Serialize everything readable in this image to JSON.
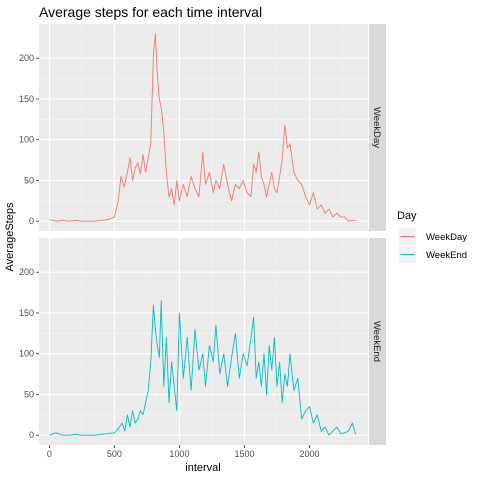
{
  "chart_data": {
    "type": "line",
    "title": "Average steps for each time interval",
    "xlabel": "interval",
    "ylabel": "AverageSteps",
    "xlim": [
      -80,
      2450
    ],
    "ylim": [
      -12,
      242
    ],
    "x_ticks": [
      0,
      500,
      1000,
      1500,
      2000
    ],
    "y_ticks": [
      0,
      50,
      100,
      150,
      200
    ],
    "grid": true,
    "legend_position": "right",
    "legend_title": "Day",
    "facet_by": "Day",
    "series": [
      {
        "name": "WeekDay",
        "color": "#F8766D",
        "x": [
          0,
          50,
          100,
          150,
          200,
          250,
          300,
          350,
          400,
          450,
          500,
          530,
          550,
          575,
          600,
          620,
          640,
          660,
          680,
          700,
          720,
          740,
          760,
          780,
          800,
          815,
          830,
          845,
          860,
          880,
          900,
          920,
          940,
          960,
          980,
          1000,
          1030,
          1060,
          1090,
          1120,
          1150,
          1180,
          1200,
          1230,
          1260,
          1280,
          1310,
          1340,
          1370,
          1400,
          1430,
          1460,
          1490,
          1520,
          1550,
          1570,
          1590,
          1610,
          1630,
          1650,
          1670,
          1690,
          1710,
          1730,
          1750,
          1770,
          1790,
          1810,
          1830,
          1850,
          1880,
          1910,
          1940,
          1970,
          2000,
          2030,
          2060,
          2090,
          2120,
          2150,
          2180,
          2210,
          2240,
          2270,
          2300,
          2330,
          2355
        ],
        "values": [
          2,
          0,
          1,
          0,
          1,
          0,
          0,
          0,
          1,
          2,
          5,
          25,
          55,
          42,
          60,
          78,
          50,
          65,
          72,
          58,
          82,
          60,
          78,
          95,
          205,
          230,
          180,
          150,
          140,
          110,
          60,
          30,
          40,
          20,
          50,
          25,
          45,
          30,
          55,
          40,
          30,
          85,
          45,
          60,
          35,
          50,
          40,
          70,
          45,
          25,
          45,
          40,
          50,
          35,
          30,
          70,
          60,
          85,
          55,
          45,
          30,
          45,
          60,
          40,
          35,
          55,
          75,
          118,
          90,
          95,
          60,
          50,
          45,
          30,
          20,
          35,
          15,
          20,
          10,
          15,
          5,
          10,
          5,
          5,
          0,
          1,
          1
        ]
      },
      {
        "name": "WeekEnd",
        "color": "#00BFC4",
        "x": [
          0,
          50,
          100,
          150,
          200,
          250,
          300,
          350,
          400,
          450,
          500,
          530,
          560,
          580,
          600,
          620,
          640,
          660,
          680,
          700,
          720,
          740,
          760,
          780,
          800,
          815,
          830,
          845,
          860,
          880,
          900,
          920,
          940,
          960,
          980,
          1000,
          1030,
          1060,
          1090,
          1120,
          1150,
          1180,
          1200,
          1230,
          1260,
          1280,
          1310,
          1340,
          1370,
          1400,
          1430,
          1460,
          1490,
          1520,
          1550,
          1570,
          1590,
          1610,
          1630,
          1650,
          1670,
          1690,
          1710,
          1730,
          1750,
          1770,
          1790,
          1810,
          1830,
          1850,
          1880,
          1910,
          1940,
          1970,
          2000,
          2030,
          2060,
          2090,
          2120,
          2150,
          2180,
          2210,
          2240,
          2270,
          2300,
          2330,
          2355
        ],
        "values": [
          0,
          3,
          0,
          0,
          1,
          0,
          0,
          0,
          1,
          2,
          3,
          8,
          15,
          5,
          25,
          10,
          30,
          15,
          20,
          30,
          25,
          40,
          55,
          90,
          160,
          130,
          110,
          95,
          165,
          60,
          120,
          40,
          90,
          60,
          30,
          150,
          70,
          120,
          55,
          130,
          80,
          100,
          60,
          110,
          90,
          135,
          75,
          100,
          60,
          95,
          125,
          70,
          100,
          85,
          120,
          145,
          70,
          90,
          60,
          100,
          50,
          110,
          80,
          120,
          60,
          90,
          40,
          75,
          60,
          100,
          55,
          70,
          20,
          30,
          35,
          15,
          25,
          5,
          10,
          0,
          5,
          10,
          2,
          3,
          5,
          15,
          1
        ]
      }
    ],
    "facets": [
      {
        "label": "WeekDay",
        "series": 0
      },
      {
        "label": "WeekEnd",
        "series": 1
      }
    ]
  }
}
